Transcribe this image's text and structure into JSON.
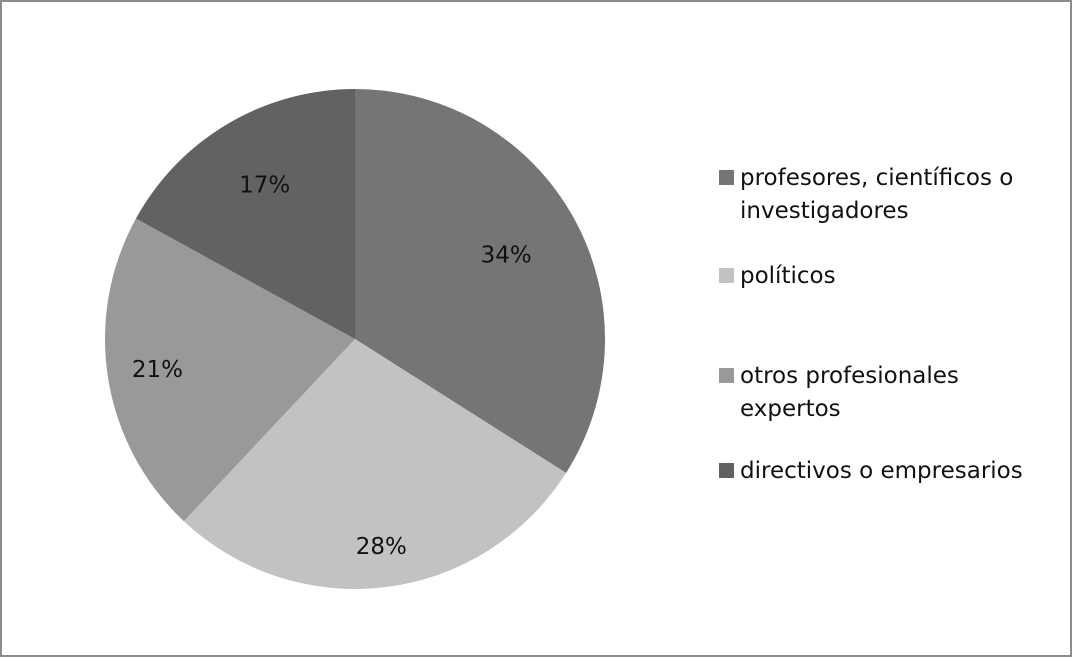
{
  "chart_data": {
    "type": "pie",
    "title": "",
    "legend_position": "right",
    "slices": [
      {
        "label": "profesores, científicos o investigadores",
        "value": 34,
        "display": "34%",
        "color": "#757575"
      },
      {
        "label": "políticos",
        "value": 28,
        "display": "28%",
        "color": "#c2c2c2"
      },
      {
        "label": "otros profesionales expertos",
        "value": 21,
        "display": "21%",
        "color": "#999999"
      },
      {
        "label": "directivos o empresarios",
        "value": 17,
        "display": "17%",
        "color": "#626262"
      }
    ]
  }
}
